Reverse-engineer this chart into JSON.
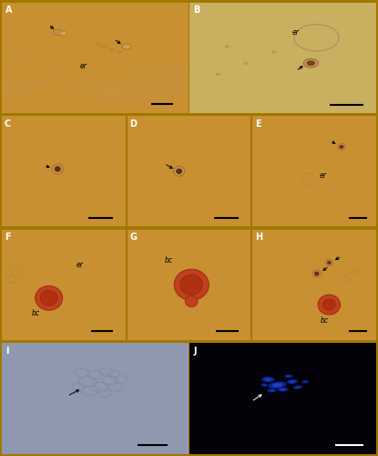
{
  "fig_bg": "#a07800",
  "panel_bg_orange": "#c89030",
  "panel_bg_b": "#c8b060",
  "panel_bg_i": "#9098b0",
  "panel_bg_j": "#020208",
  "panels_row0": [
    "A",
    "B"
  ],
  "panels_row1": [
    "C",
    "D",
    "E"
  ],
  "panels_row2": [
    "F",
    "G",
    "H"
  ],
  "panels_row3": [
    "I",
    "J"
  ],
  "label_fontsize": 7,
  "annotation_fontsize": 5.5,
  "scale_bar_lw": 1.5
}
